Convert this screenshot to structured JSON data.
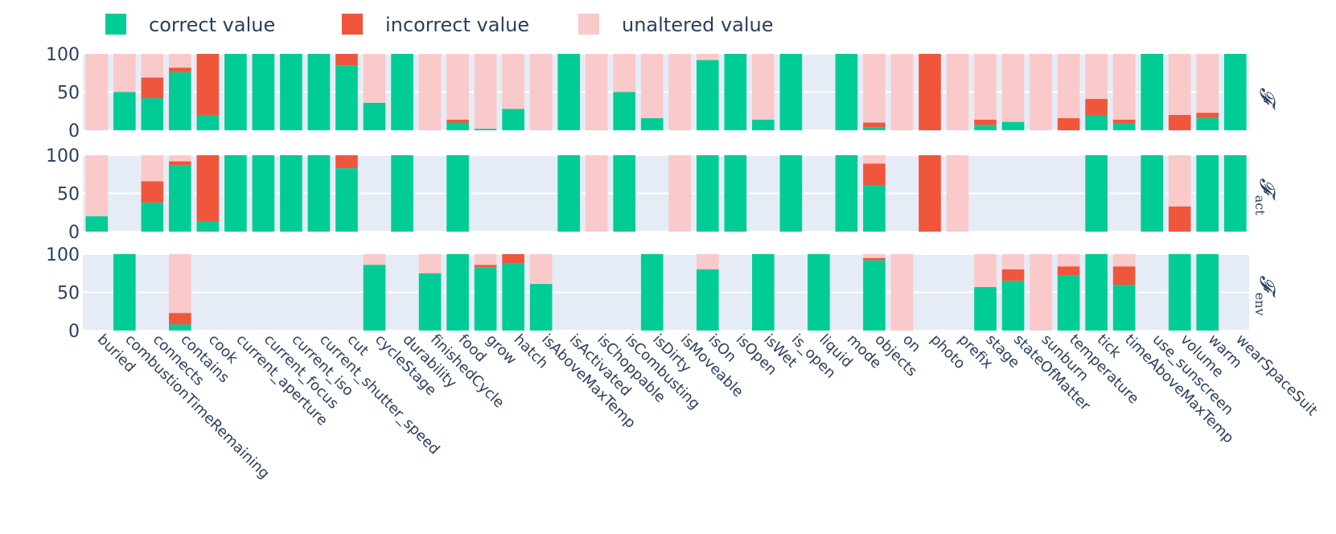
{
  "chart_data": {
    "type": "bar",
    "stacked": true,
    "categories": [
      "buried",
      "combustionTimeRemaining",
      "connects",
      "contains",
      "cook",
      "current_aperture",
      "current_focus",
      "current_iso",
      "current_shutter_speed",
      "cut",
      "cycleStage",
      "durability",
      "finishedCycle",
      "food",
      "grow",
      "hatch",
      "isAboveMaxTemp",
      "isActivated",
      "isChoppable",
      "isCombusting",
      "isDirty",
      "isMoveable",
      "isOn",
      "isOpen",
      "isWet",
      "is_open",
      "liquid",
      "mode",
      "objects",
      "on",
      "photo",
      "prefix",
      "stage",
      "stateOfMatter",
      "sunburn",
      "temperature",
      "tick",
      "timeAboveMaxTemp",
      "use_sunscreen",
      "volume",
      "warm",
      "wearSpaceSuit"
    ],
    "legend": {
      "placement": "top-left",
      "entries": [
        {
          "name": "correct value",
          "color": "#00cc96"
        },
        {
          "name": "incorrect value",
          "color": "#f0563c"
        },
        {
          "name": "unaltered value",
          "color": "#fac9c9"
        }
      ]
    },
    "ylim": [
      0,
      100
    ],
    "yticks": [
      "0",
      "50",
      "100"
    ],
    "grid": true,
    "panels": [
      {
        "label": "𝓕",
        "sub": "",
        "series": [
          {
            "name": "correct value",
            "values": [
              0,
              50,
              42,
              76,
              20,
              100,
              100,
              100,
              100,
              85,
              36,
              100,
              0,
              10,
              2,
              28,
              0,
              100,
              0,
              50,
              16,
              0,
              92,
              100,
              14,
              100,
              null,
              100,
              4,
              0,
              0,
              0,
              7,
              11,
              0,
              0,
              20,
              9,
              100,
              0,
              16,
              100
            ]
          },
          {
            "name": "incorrect value",
            "values": [
              0,
              0,
              27,
              6,
              80,
              0,
              0,
              0,
              0,
              15,
              0,
              0,
              0,
              4,
              0,
              0,
              0,
              0,
              0,
              0,
              0,
              0,
              0,
              0,
              0,
              0,
              null,
              0,
              6,
              0,
              100,
              0,
              7,
              0,
              0,
              16,
              21,
              5,
              0,
              20,
              7,
              0
            ]
          },
          {
            "name": "unaltered value",
            "values": [
              100,
              50,
              31,
              18,
              0,
              0,
              0,
              0,
              0,
              0,
              64,
              0,
              100,
              86,
              98,
              72,
              100,
              0,
              100,
              50,
              84,
              100,
              8,
              0,
              86,
              0,
              null,
              0,
              90,
              100,
              0,
              100,
              86,
              89,
              100,
              84,
              59,
              86,
              0,
              80,
              77,
              0
            ]
          }
        ]
      },
      {
        "label": "𝓕",
        "sub": "act",
        "series": [
          {
            "name": "correct value",
            "values": [
              20,
              null,
              38,
              87,
              13,
              100,
              100,
              100,
              100,
              83,
              null,
              100,
              null,
              100,
              null,
              null,
              null,
              100,
              0,
              100,
              null,
              0,
              100,
              100,
              null,
              100,
              null,
              100,
              61,
              null,
              0,
              0,
              null,
              null,
              null,
              null,
              100,
              null,
              100,
              0,
              100,
              100
            ]
          },
          {
            "name": "incorrect value",
            "values": [
              0,
              null,
              28,
              5,
              87,
              0,
              0,
              0,
              0,
              17,
              null,
              0,
              null,
              0,
              null,
              null,
              null,
              0,
              0,
              0,
              null,
              0,
              0,
              0,
              null,
              0,
              null,
              0,
              28,
              null,
              100,
              0,
              null,
              null,
              null,
              null,
              0,
              null,
              0,
              33,
              0,
              0
            ]
          },
          {
            "name": "unaltered value",
            "values": [
              80,
              null,
              34,
              8,
              0,
              0,
              0,
              0,
              0,
              0,
              null,
              0,
              null,
              0,
              null,
              null,
              null,
              0,
              100,
              0,
              null,
              100,
              0,
              0,
              null,
              0,
              null,
              0,
              11,
              null,
              0,
              100,
              null,
              null,
              null,
              null,
              0,
              null,
              0,
              67,
              0,
              0
            ]
          }
        ]
      },
      {
        "label": "𝓕",
        "sub": "env",
        "series": [
          {
            "name": "correct value",
            "values": [
              null,
              100,
              null,
              8,
              null,
              null,
              null,
              null,
              null,
              null,
              86,
              null,
              75,
              100,
              83,
              88,
              61,
              null,
              null,
              null,
              100,
              null,
              80,
              null,
              100,
              null,
              100,
              null,
              92,
              0,
              null,
              null,
              57,
              65,
              0,
              72,
              100,
              60,
              null,
              100,
              100,
              null
            ]
          },
          {
            "name": "incorrect value",
            "values": [
              null,
              0,
              null,
              15,
              null,
              null,
              null,
              null,
              null,
              null,
              0,
              null,
              0,
              0,
              3,
              12,
              0,
              null,
              null,
              null,
              0,
              null,
              0,
              null,
              0,
              null,
              0,
              null,
              3,
              0,
              null,
              null,
              0,
              15,
              0,
              12,
              0,
              24,
              null,
              0,
              0,
              null
            ]
          },
          {
            "name": "unaltered value",
            "values": [
              null,
              0,
              null,
              77,
              null,
              null,
              null,
              null,
              null,
              null,
              14,
              null,
              25,
              0,
              14,
              0,
              39,
              null,
              null,
              null,
              0,
              null,
              20,
              null,
              0,
              null,
              0,
              null,
              5,
              100,
              null,
              null,
              43,
              20,
              100,
              16,
              0,
              16,
              null,
              0,
              0,
              null
            ]
          }
        ]
      }
    ]
  }
}
